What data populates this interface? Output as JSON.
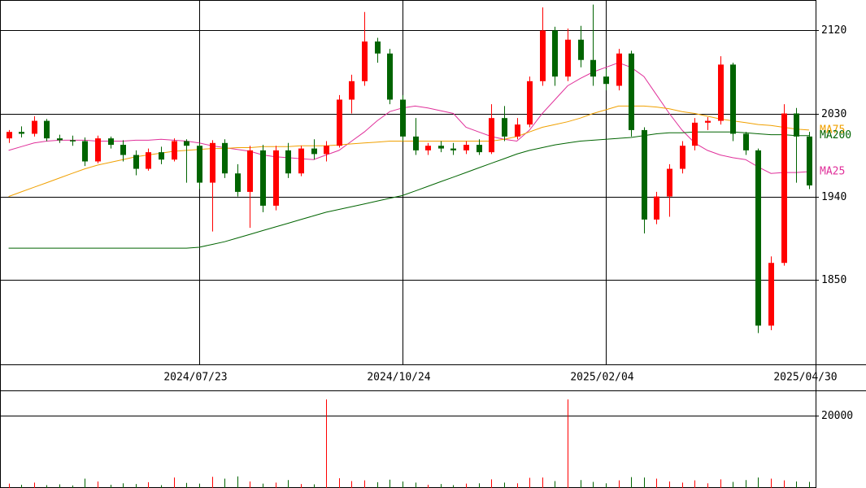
{
  "chart_data": [
    {
      "type": "candlestick",
      "categories": [
        null,
        null,
        null,
        null,
        null,
        null,
        null,
        null,
        null,
        null,
        null,
        null,
        null,
        null,
        null,
        "2024/07/23",
        null,
        null,
        null,
        null,
        null,
        null,
        null,
        null,
        null,
        null,
        null,
        null,
        null,
        null,
        null,
        "2024/10/24",
        null,
        null,
        null,
        null,
        null,
        null,
        null,
        null,
        null,
        null,
        null,
        null,
        null,
        null,
        null,
        "2025/02/04",
        null,
        null,
        null,
        null,
        null,
        null,
        null,
        null,
        null,
        null,
        null,
        null,
        null,
        null,
        null,
        "2025/04/30"
      ],
      "open": [
        2003,
        2010,
        2008,
        2022,
        2003,
        2001,
        2000,
        1978,
        2003,
        1996,
        1985,
        1970,
        1988,
        1980,
        2000,
        1995,
        1955,
        1998,
        1965,
        1945,
        1990,
        1930,
        1990,
        1965,
        1992,
        1986,
        1995,
        2045,
        2065,
        2108,
        2095,
        2045,
        2005,
        1990,
        1995,
        1992,
        1990,
        1996,
        1988,
        2025,
        2005,
        2018,
        2065,
        2120,
        2070,
        2110,
        2088,
        2070,
        2060,
        2095,
        2012,
        1915,
        1940,
        1970,
        1995,
        2020,
        2022,
        2083,
        2008,
        1990,
        1800,
        1868,
        2030,
        2005
      ],
      "high": [
        2012,
        2016,
        2027,
        2024,
        2007,
        2006,
        2004,
        2006,
        2005,
        2001,
        1990,
        1992,
        1994,
        2003,
        2002,
        1998,
        2001,
        2002,
        1975,
        1995,
        1996,
        1995,
        1998,
        1995,
        2002,
        2000,
        2050,
        2072,
        2140,
        2112,
        2100,
        2050,
        2025,
        1998,
        2000,
        1998,
        2000,
        2002,
        2040,
        2038,
        2025,
        2070,
        2145,
        2124,
        2122,
        2125,
        2148,
        2078,
        2100,
        2098,
        2015,
        1945,
        1975,
        2000,
        2025,
        2026,
        2092,
        2085,
        2010,
        1992,
        1875,
        2040,
        2036,
        2010
      ],
      "low": [
        1998,
        2004,
        2005,
        2000,
        1998,
        1995,
        1973,
        1976,
        1992,
        1978,
        1963,
        1968,
        1975,
        1978,
        1955,
        1948,
        1902,
        1960,
        1940,
        1906,
        1923,
        1925,
        1960,
        1962,
        1980,
        1978,
        1993,
        2030,
        2060,
        2085,
        2040,
        2000,
        1985,
        1985,
        1988,
        1985,
        1986,
        1985,
        1986,
        2000,
        2002,
        2015,
        2060,
        2060,
        2065,
        2080,
        2060,
        2055,
        2055,
        2005,
        1900,
        1910,
        1918,
        1965,
        1990,
        2012,
        2018,
        2000,
        1985,
        1792,
        1795,
        1865,
        1955,
        1948
      ],
      "close": [
        2010,
        2008,
        2022,
        2003,
        2001,
        2000,
        1978,
        2003,
        1996,
        1985,
        1970,
        1988,
        1980,
        2000,
        1995,
        1955,
        1998,
        1965,
        1945,
        1990,
        1930,
        1990,
        1965,
        1992,
        1986,
        1995,
        2045,
        2065,
        2108,
        2095,
        2045,
        2005,
        1990,
        1995,
        1992,
        1990,
        1996,
        1988,
        2025,
        2005,
        2018,
        2065,
        2120,
        2070,
        2110,
        2088,
        2070,
        2062,
        2095,
        2012,
        1915,
        1940,
        1970,
        1995,
        2020,
        2022,
        2083,
        2008,
        1990,
        1800,
        1868,
        2030,
        2005,
        1952
      ],
      "up_color": "#ff0000",
      "down_color": "#006400",
      "series": [
        {
          "name": "MA25",
          "color": "#e0309a",
          "values": [
            1990,
            1994,
            1998,
            2000,
            2001,
            2001,
            2001,
            2000,
            2000,
            2000,
            2001,
            2001,
            2002,
            2001,
            2000,
            1998,
            1995,
            1993,
            1991,
            1989,
            1985,
            1983,
            1982,
            1981,
            1980,
            1985,
            1990,
            2000,
            2010,
            2022,
            2032,
            2036,
            2038,
            2036,
            2033,
            2030,
            2015,
            2010,
            2005,
            2002,
            2000,
            2012,
            2030,
            2045,
            2060,
            2068,
            2075,
            2080,
            2085,
            2080,
            2070,
            2050,
            2030,
            2012,
            1998,
            1990,
            1985,
            1982,
            1980,
            1972,
            1965,
            1966,
            1966,
            1967
          ]
        },
        {
          "name": "MA75",
          "color": "#f0a000",
          "values": [
            1940,
            1945,
            1950,
            1955,
            1960,
            1965,
            1970,
            1974,
            1977,
            1980,
            1983,
            1985,
            1987,
            1989,
            1990,
            1991,
            1992,
            1992,
            1993,
            1993,
            1994,
            1994,
            1994,
            1995,
            1995,
            1995,
            1996,
            1997,
            1998,
            1999,
            2000,
            2000,
            2000,
            2000,
            2000,
            2000,
            2000,
            2000,
            2000,
            2002,
            2005,
            2010,
            2015,
            2018,
            2021,
            2025,
            2030,
            2034,
            2038,
            2038,
            2038,
            2037,
            2035,
            2032,
            2030,
            2027,
            2024,
            2022,
            2020,
            2018,
            2017,
            2015,
            2013,
            2012
          ]
        },
        {
          "name": "MA200",
          "color": "#006400",
          "values": [
            1884,
            1884,
            1884,
            1884,
            1884,
            1884,
            1884,
            1884,
            1884,
            1884,
            1884,
            1884,
            1884,
            1884,
            1884,
            1885,
            1888,
            1891,
            1895,
            1899,
            1903,
            1907,
            1911,
            1915,
            1919,
            1923,
            1926,
            1929,
            1932,
            1935,
            1938,
            1941,
            1946,
            1951,
            1956,
            1961,
            1966,
            1971,
            1976,
            1981,
            1986,
            1990,
            1993,
            1996,
            1998,
            2000,
            2001,
            2002,
            2003,
            2004,
            2006,
            2008,
            2009,
            2009,
            2010,
            2010,
            2010,
            2010,
            2009,
            2008,
            2007,
            2007,
            2006,
            2006
          ]
        }
      ],
      "ylim": [
        1758,
        2153
      ],
      "yticks": [
        1850,
        1940,
        2030,
        2120
      ],
      "grid": true
    },
    {
      "type": "bar",
      "values": [
        1200,
        900,
        1500,
        800,
        1000,
        700,
        2600,
        1800,
        900,
        1300,
        1100,
        1600,
        800,
        2900,
        1400,
        1200,
        3100,
        2600,
        3200,
        1800,
        1200,
        1500,
        2200,
        1100,
        1000,
        24500,
        2700,
        1900,
        2100,
        1600,
        2300,
        1800,
        1500,
        900,
        1100,
        800,
        1200,
        1300,
        2400,
        1500,
        1300,
        2800,
        2900,
        1900,
        24500,
        2200,
        1700,
        1300,
        2100,
        3000,
        2900,
        2600,
        1800,
        1500,
        2100,
        1300,
        2400,
        1700,
        2200,
        2900,
        2600,
        2100,
        1800,
        1700
      ],
      "ylim": [
        0,
        27000
      ],
      "yticks": [
        20000
      ],
      "grid": true
    }
  ]
}
